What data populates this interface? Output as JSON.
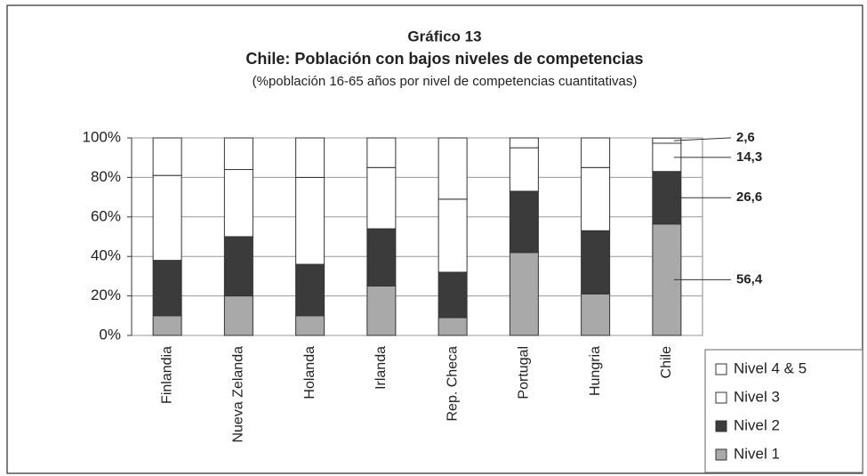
{
  "chart_data": {
    "type": "stacked_bar",
    "title": "Gráfico 13",
    "subtitle": "Chile: Población con bajos niveles de competencias",
    "note": "(%población 16-65 años por nivel de competencias cuantitativas)",
    "categories": [
      "Finlandia",
      "Nueva Zelanda",
      "Holanda",
      "Irlanda",
      "Rep. Checa",
      "Portugal",
      "Hungria",
      "Chile"
    ],
    "series": [
      {
        "name": "Nivel 1",
        "color": "#a9a9a9",
        "values": [
          10,
          20,
          10,
          25,
          9,
          42,
          21,
          56.4
        ],
        "value_labels": [
          null,
          null,
          null,
          null,
          null,
          null,
          null,
          "56,4"
        ]
      },
      {
        "name": "Nivel 2",
        "color": "#3b3b3b",
        "values": [
          28,
          30,
          26,
          29,
          23,
          31,
          32,
          26.6
        ],
        "value_labels": [
          null,
          null,
          null,
          null,
          null,
          null,
          null,
          "26,6"
        ]
      },
      {
        "name": "Nivel 3",
        "color": "#ffffff",
        "values": [
          43,
          34,
          44,
          31,
          37,
          22,
          32,
          14.3
        ],
        "value_labels": [
          null,
          null,
          null,
          null,
          null,
          null,
          null,
          "14,3"
        ]
      },
      {
        "name": "Nivel 4 & 5",
        "color": "#ffffff",
        "values": [
          19,
          16,
          20,
          15,
          31,
          5,
          15,
          2.6
        ],
        "value_labels": [
          null,
          null,
          null,
          null,
          null,
          null,
          null,
          "2,6"
        ]
      }
    ],
    "ylim": [
      0,
      100
    ],
    "yticks": [
      {
        "value": 0,
        "label": "0%"
      },
      {
        "value": 20,
        "label": "20%"
      },
      {
        "value": 40,
        "label": "40%"
      },
      {
        "value": 60,
        "label": "60%"
      },
      {
        "value": 80,
        "label": "80%"
      },
      {
        "value": 100,
        "label": "100%"
      }
    ],
    "grid": true,
    "legend": "bottom-right"
  }
}
